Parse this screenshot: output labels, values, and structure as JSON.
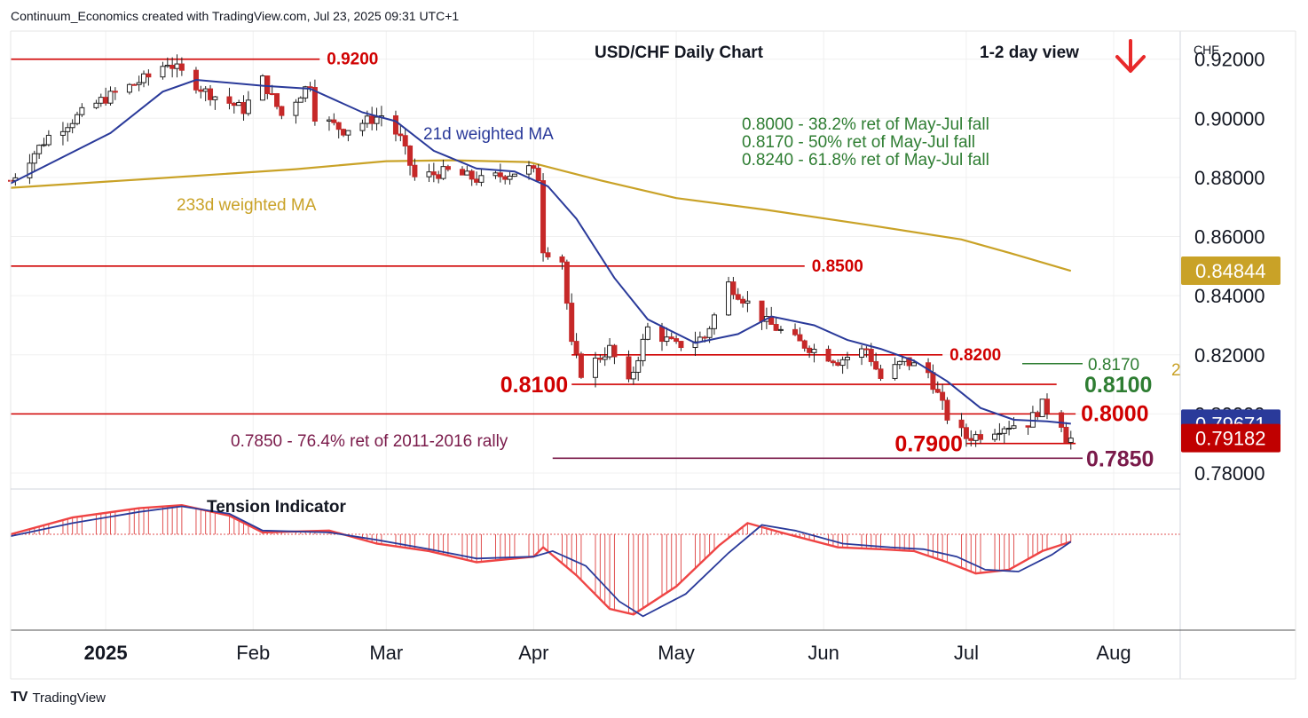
{
  "header": {
    "credit": "Continuum_Economics created with TradingView.com, Jul 23, 2025 09:31 UTC+1"
  },
  "footer": {
    "brand": "TradingView",
    "logo": "TV"
  },
  "colors": {
    "up": "#2e7d32",
    "down": "#c62828",
    "level": "#d00000",
    "ret": "#2e7d32",
    "ma21": "#2a3a9a",
    "ma233": "#c9a227",
    "rally": "#7a1a4a",
    "tension": "#2a3a9a"
  },
  "chart_data": {
    "type": "candlestick",
    "title": "USD/CHF Daily Chart",
    "view": "1-2 day view",
    "view_icon": "down-arrow-icon",
    "currency": "CHF",
    "ylim": [
      0.7755,
      0.9295
    ],
    "y_ticks": [
      "0.92000",
      "0.90000",
      "0.88000",
      "0.86000",
      "0.84000",
      "0.82000",
      "0.80000",
      "0.78000"
    ],
    "x_ticks": [
      {
        "label": "2025",
        "date": "2025-01-01"
      },
      {
        "label": "Feb",
        "date": "2025-02-01"
      },
      {
        "label": "Mar",
        "date": "2025-03-01"
      },
      {
        "label": "Apr",
        "date": "2025-04-01"
      },
      {
        "label": "May",
        "date": "2025-05-01"
      },
      {
        "label": "Jun",
        "date": "2025-06-01"
      },
      {
        "label": "Jul",
        "date": "2025-07-01"
      },
      {
        "label": "Aug",
        "date": "2025-08-01"
      }
    ],
    "x_range": [
      "2024-12-12",
      "2025-08-15"
    ],
    "price_badges": [
      {
        "label": "0.84844",
        "value": 0.84844,
        "color": "#c9a227"
      },
      {
        "label": "0.79671",
        "value": 0.79671,
        "color": "#2a3a9a"
      },
      {
        "label": "0.79182",
        "value": 0.79182,
        "color": "#c00000"
      }
    ],
    "levels": [
      {
        "label": "0.9200",
        "value": 0.92,
        "from": "2024-12-12",
        "to": "2025-02-15",
        "label_side": "end"
      },
      {
        "label": "0.8500",
        "value": 0.85,
        "from": "2024-12-12",
        "to": "2025-05-28",
        "label_side": "end"
      },
      {
        "label": "0.8200",
        "value": 0.82,
        "from": "2025-04-09",
        "to": "2025-06-26",
        "label_side": "end"
      },
      {
        "label": "0.8100",
        "value": 0.81,
        "from": "2025-04-09",
        "to": "2025-07-20",
        "label_side": "start"
      },
      {
        "label": "0.8000",
        "value": 0.8,
        "from": "2024-12-12",
        "to": "2025-07-24",
        "label_side": "end"
      },
      {
        "label": "0.7900",
        "value": 0.79,
        "from": "2025-07-01",
        "to": "2025-07-24",
        "label_side": "start"
      }
    ],
    "retracement_levels": [
      {
        "label": "0.8170",
        "value": 0.817
      },
      {
        "label": "0.8100",
        "value": 0.81
      }
    ],
    "rally_level": {
      "label": "0.7850",
      "value": 0.785,
      "from": "2025-04-05"
    },
    "annotations": [
      "0.8000 - 38.2% ret of May-Jul fall",
      "0.8170 - 50% ret of May-Jul fall",
      "0.8240 - 61.8% ret of May-Jul fall"
    ],
    "rally_annotation": "0.7850 - 76.4% ret of 2011-2016 rally",
    "ma21_label": "21d weighted MA",
    "ma233_label": "233d weighted MA",
    "ma233_edge_label": "2",
    "tension_label": "Tension Indicator",
    "ohlc_anchors": [
      [
        "2024-12-12",
        0.879
      ],
      [
        "2024-12-20",
        0.894
      ],
      [
        "2024-12-31",
        0.906
      ],
      [
        "2025-01-10",
        0.914
      ],
      [
        "2025-01-14",
        0.919
      ],
      [
        "2025-01-22",
        0.909
      ],
      [
        "2025-01-30",
        0.903
      ],
      [
        "2025-02-03",
        0.913
      ],
      [
        "2025-02-07",
        0.901
      ],
      [
        "2025-02-13",
        0.912
      ],
      [
        "2025-02-14",
        0.901
      ],
      [
        "2025-02-20",
        0.896
      ],
      [
        "2025-02-28",
        0.901
      ],
      [
        "2025-03-04",
        0.893
      ],
      [
        "2025-03-07",
        0.88
      ],
      [
        "2025-03-14",
        0.882
      ],
      [
        "2025-03-21",
        0.879
      ],
      [
        "2025-03-31",
        0.883
      ],
      [
        "2025-04-02",
        0.88
      ],
      [
        "2025-04-03",
        0.856
      ],
      [
        "2025-04-07",
        0.852
      ],
      [
        "2025-04-09",
        0.823
      ],
      [
        "2025-04-11",
        0.814
      ],
      [
        "2025-04-17",
        0.822
      ],
      [
        "2025-04-21",
        0.81
      ],
      [
        "2025-04-25",
        0.829
      ],
      [
        "2025-05-01",
        0.823
      ],
      [
        "2025-05-07",
        0.826
      ],
      [
        "2025-05-12",
        0.844
      ],
      [
        "2025-05-20",
        0.831
      ],
      [
        "2025-05-27",
        0.824
      ],
      [
        "2025-06-04",
        0.818
      ],
      [
        "2025-06-10",
        0.822
      ],
      [
        "2025-06-13",
        0.812
      ],
      [
        "2025-06-18",
        0.818
      ],
      [
        "2025-06-23",
        0.814
      ],
      [
        "2025-06-27",
        0.799
      ],
      [
        "2025-07-01",
        0.792
      ],
      [
        "2025-07-04",
        0.793
      ],
      [
        "2025-07-09",
        0.796
      ],
      [
        "2025-07-14",
        0.797
      ],
      [
        "2025-07-17",
        0.803
      ],
      [
        "2025-07-21",
        0.797
      ],
      [
        "2025-07-22",
        0.792
      ],
      [
        "2025-07-23",
        0.7918
      ]
    ],
    "ma21": [
      [
        "2024-12-12",
        0.878
      ],
      [
        "2025-01-02",
        0.895
      ],
      [
        "2025-01-13",
        0.909
      ],
      [
        "2025-01-20",
        0.913
      ],
      [
        "2025-02-03",
        0.911
      ],
      [
        "2025-02-13",
        0.91
      ],
      [
        "2025-02-24",
        0.902
      ],
      [
        "2025-03-03",
        0.899
      ],
      [
        "2025-03-11",
        0.889
      ],
      [
        "2025-03-20",
        0.883
      ],
      [
        "2025-03-28",
        0.882
      ],
      [
        "2025-04-04",
        0.877
      ],
      [
        "2025-04-10",
        0.866
      ],
      [
        "2025-04-18",
        0.846
      ],
      [
        "2025-04-25",
        0.832
      ],
      [
        "2025-05-05",
        0.824
      ],
      [
        "2025-05-14",
        0.827
      ],
      [
        "2025-05-21",
        0.833
      ],
      [
        "2025-05-30",
        0.83
      ],
      [
        "2025-06-06",
        0.825
      ],
      [
        "2025-06-13",
        0.822
      ],
      [
        "2025-06-20",
        0.818
      ],
      [
        "2025-06-27",
        0.811
      ],
      [
        "2025-07-04",
        0.802
      ],
      [
        "2025-07-11",
        0.798
      ],
      [
        "2025-07-18",
        0.7975
      ],
      [
        "2025-07-23",
        0.7967
      ]
    ],
    "ma233": [
      [
        "2024-12-12",
        0.8765
      ],
      [
        "2025-01-10",
        0.8795
      ],
      [
        "2025-02-10",
        0.8828
      ],
      [
        "2025-03-01",
        0.8855
      ],
      [
        "2025-03-15",
        0.8858
      ],
      [
        "2025-03-31",
        0.8852
      ],
      [
        "2025-04-15",
        0.879
      ],
      [
        "2025-05-01",
        0.873
      ],
      [
        "2025-05-20",
        0.869
      ],
      [
        "2025-06-10",
        0.864
      ],
      [
        "2025-06-30",
        0.859
      ],
      [
        "2025-07-10",
        0.8545
      ],
      [
        "2025-07-23",
        0.8484
      ]
    ],
    "tension_fast": [
      [
        "2024-12-12",
        0.0
      ],
      [
        "2024-12-25",
        0.45
      ],
      [
        "2025-01-08",
        0.7
      ],
      [
        "2025-01-17",
        0.78
      ],
      [
        "2025-01-27",
        0.5
      ],
      [
        "2025-02-03",
        0.05
      ],
      [
        "2025-02-17",
        0.1
      ],
      [
        "2025-02-27",
        -0.25
      ],
      [
        "2025-03-10",
        -0.45
      ],
      [
        "2025-03-20",
        -0.75
      ],
      [
        "2025-04-01",
        -0.6
      ],
      [
        "2025-04-03",
        -0.35
      ],
      [
        "2025-04-10",
        -1.1
      ],
      [
        "2025-04-17",
        -2.0
      ],
      [
        "2025-04-22",
        -2.15
      ],
      [
        "2025-05-01",
        -1.4
      ],
      [
        "2025-05-10",
        -0.3
      ],
      [
        "2025-05-16",
        0.3
      ],
      [
        "2025-05-23",
        0.05
      ],
      [
        "2025-06-04",
        -0.35
      ],
      [
        "2025-06-13",
        -0.4
      ],
      [
        "2025-06-20",
        -0.45
      ],
      [
        "2025-06-27",
        -0.75
      ],
      [
        "2025-07-03",
        -1.05
      ],
      [
        "2025-07-10",
        -0.95
      ],
      [
        "2025-07-17",
        -0.45
      ],
      [
        "2025-07-23",
        -0.2
      ]
    ],
    "tension_slow": [
      [
        "2024-12-12",
        -0.05
      ],
      [
        "2024-12-25",
        0.3
      ],
      [
        "2025-01-08",
        0.6
      ],
      [
        "2025-01-17",
        0.75
      ],
      [
        "2025-01-27",
        0.55
      ],
      [
        "2025-02-03",
        0.1
      ],
      [
        "2025-02-17",
        0.05
      ],
      [
        "2025-02-27",
        -0.15
      ],
      [
        "2025-03-10",
        -0.4
      ],
      [
        "2025-03-20",
        -0.65
      ],
      [
        "2025-04-01",
        -0.6
      ],
      [
        "2025-04-05",
        -0.45
      ],
      [
        "2025-04-12",
        -0.85
      ],
      [
        "2025-04-19",
        -1.8
      ],
      [
        "2025-04-24",
        -2.2
      ],
      [
        "2025-05-03",
        -1.6
      ],
      [
        "2025-05-12",
        -0.5
      ],
      [
        "2025-05-19",
        0.25
      ],
      [
        "2025-05-26",
        0.1
      ],
      [
        "2025-06-05",
        -0.25
      ],
      [
        "2025-06-15",
        -0.35
      ],
      [
        "2025-06-22",
        -0.4
      ],
      [
        "2025-06-29",
        -0.6
      ],
      [
        "2025-07-05",
        -0.95
      ],
      [
        "2025-07-12",
        -1.0
      ],
      [
        "2025-07-19",
        -0.55
      ],
      [
        "2025-07-23",
        -0.2
      ]
    ]
  }
}
